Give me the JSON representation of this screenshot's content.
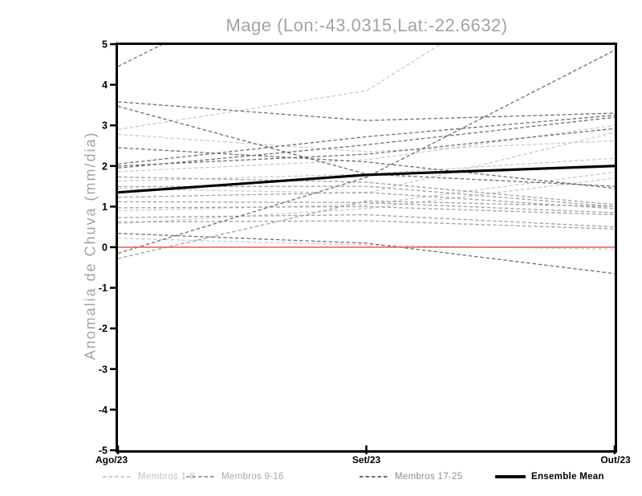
{
  "title": "Mage (Lon:-43.0315,Lat:-22.6632)",
  "chart_data": {
    "type": "line",
    "title": "Mage (Lon:-43.0315,Lat:-22.6632)",
    "x_categories": [
      "Ago/23",
      "Set/23",
      "Out/23"
    ],
    "xlabel": "",
    "ylabel": "Anomalia de Chuva (mm/dia)",
    "ylim": [
      -5,
      5
    ],
    "ytick_step": 1,
    "grid": false,
    "legend_position": "bottom",
    "frame_color": "#000000",
    "tick_label_color": "#000000",
    "zero_line": {
      "value": 0,
      "color": "#f25353"
    },
    "series_groups": [
      {
        "name": "Membros 1-8",
        "line_color": "#cacaca",
        "label_color": "#c2c2c2",
        "style": "dashed",
        "members": [
          [
            2.9,
            3.85,
            7.7
          ],
          [
            2.78,
            2.35,
            2.62
          ],
          [
            1.86,
            2.15,
            3.0
          ],
          [
            1.63,
            1.8,
            2.19
          ],
          [
            0.9,
            1.05,
            1.85
          ],
          [
            0.58,
            0.95,
            1.7
          ],
          [
            0.22,
            0.05,
            -0.05
          ],
          [
            1.44,
            1.33,
            2.83
          ]
        ]
      },
      {
        "name": "Membros 9-16",
        "line_color": "#a0a0a0",
        "label_color": "#a8a8a8",
        "style": "dashed",
        "members": [
          [
            1.73,
            1.6,
            1.05
          ],
          [
            1.49,
            1.5,
            1.0
          ],
          [
            1.23,
            1.35,
            0.95
          ],
          [
            1.12,
            1.1,
            0.85
          ],
          [
            0.97,
            1.0,
            0.8
          ],
          [
            0.73,
            0.8,
            0.5
          ],
          [
            0.62,
            0.65,
            0.45
          ],
          [
            -0.28,
            1.14,
            1.0
          ]
        ]
      },
      {
        "name": "Membros 17-25",
        "line_color": "#6e6e6e",
        "label_color": "#8e8e8e",
        "style": "dashed",
        "members": [
          [
            4.45,
            7.5,
            7.5
          ],
          [
            3.58,
            3.12,
            3.3
          ],
          [
            3.47,
            1.8,
            1.5
          ],
          [
            2.45,
            2.1,
            1.45
          ],
          [
            2.05,
            2.72,
            3.25
          ],
          [
            2.0,
            2.29,
            2.92
          ],
          [
            1.95,
            2.52,
            3.2
          ],
          [
            -0.15,
            1.72,
            4.85
          ],
          [
            0.34,
            0.1,
            -0.65
          ]
        ]
      }
    ],
    "ensemble_mean": {
      "name": "Ensemble Mean",
      "line_color": "#000000",
      "label_color": "#000000",
      "style": "solid",
      "values": [
        1.35,
        1.78,
        2.0
      ]
    }
  }
}
